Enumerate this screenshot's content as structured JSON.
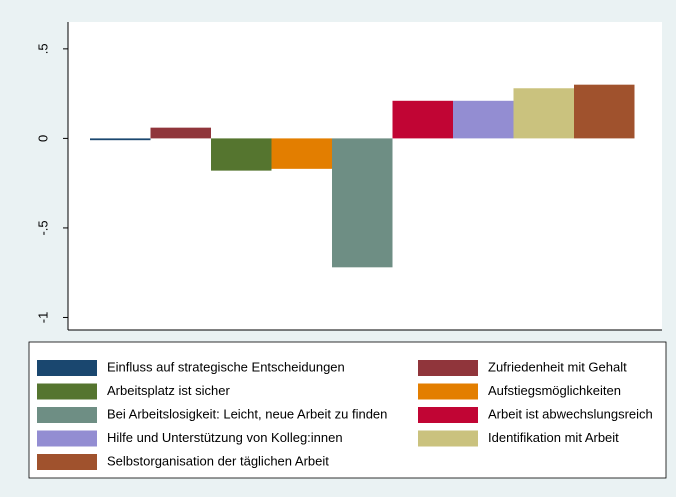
{
  "chart_data": {
    "type": "bar",
    "categories": [
      "Einfluss auf strategische Entscheidungen",
      "Zufriedenheit mit Gehalt",
      "Arbeitsplatz ist sicher",
      "Aufstiegsmöglichkeiten",
      "Bei Arbeitslosigkeit: Leicht, neue Arbeit zu finden",
      "Arbeit ist abwechslungsreich",
      "Hilfe und Unterstützung von Kolleg:innen",
      "Identifikation mit Arbeit",
      "Selbstorganisation der täglichen Arbeit"
    ],
    "values": [
      -0.01,
      0.06,
      -0.18,
      -0.17,
      -0.72,
      0.21,
      0.21,
      0.28,
      0.3
    ],
    "colors": [
      "#1a476f",
      "#90353b",
      "#55752f",
      "#e37e00",
      "#6e8e84",
      "#c10534",
      "#938dd2",
      "#cac27e",
      "#a0522d"
    ],
    "ylim": [
      -1.07,
      0.65
    ],
    "yticks": [
      {
        "value": 0.5,
        "label": ".5"
      },
      0,
      {
        "value": -0.5,
        "label": "-.5"
      },
      -1
    ],
    "grid": false,
    "legend": "bottom"
  }
}
